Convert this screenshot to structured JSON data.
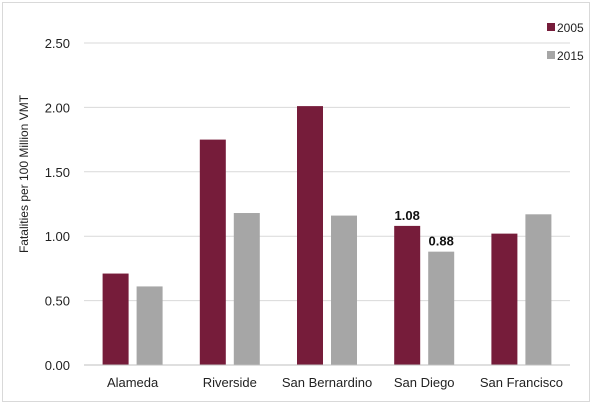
{
  "chart_data": {
    "type": "bar",
    "title": "",
    "xlabel": "",
    "ylabel": "Fatalities per 100 Million VMT",
    "categories": [
      "Alameda",
      "Riverside",
      "San Bernardino",
      "San Diego",
      "San Francisco"
    ],
    "series": [
      {
        "name": "2005",
        "color": "#761c3a",
        "values": [
          0.71,
          1.75,
          2.01,
          1.08,
          1.02
        ]
      },
      {
        "name": "2015",
        "color": "#a6a6a6",
        "values": [
          0.61,
          1.18,
          1.16,
          0.88,
          1.17
        ]
      }
    ],
    "ylim": [
      0,
      2.5
    ],
    "yticks": [
      "0.00",
      "0.50",
      "1.00",
      "1.50",
      "2.00",
      "2.50"
    ],
    "grid": true,
    "legend_position": "top-right",
    "data_labels": [
      {
        "series": 0,
        "category": 3,
        "text": "1.08"
      },
      {
        "series": 1,
        "category": 3,
        "text": "0.88"
      }
    ]
  }
}
